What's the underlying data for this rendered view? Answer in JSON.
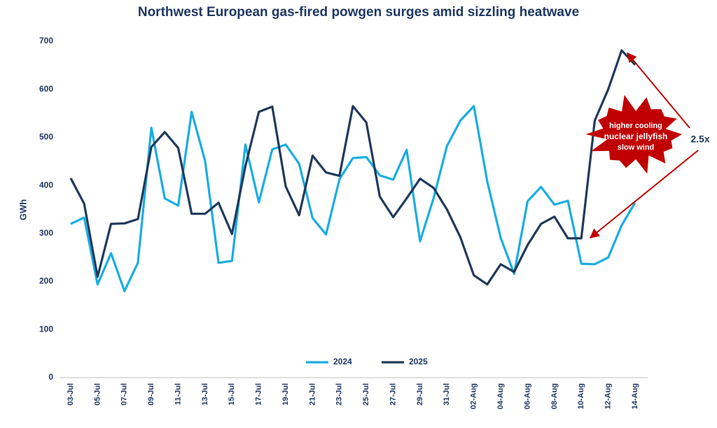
{
  "chart_data": {
    "type": "line",
    "title": "Northwest European gas-fired powgen surges amid sizzling heatwave",
    "y_label": "GWh",
    "categories": [
      "03-Jul",
      null,
      "05-Jul",
      null,
      "07-Jul",
      null,
      "09-Jul",
      null,
      "11-Jul",
      null,
      "13-Jul",
      null,
      "15-Jul",
      null,
      "17-Jul",
      null,
      "19-Jul",
      null,
      "21-Jul",
      null,
      "23-Jul",
      null,
      "25-Jul",
      null,
      "27-Jul",
      null,
      "29-Jul",
      null,
      "31-Jul",
      null,
      "02-Aug",
      null,
      "04-Aug",
      null,
      "06-Aug",
      null,
      "08-Aug",
      null,
      "10-Aug",
      null,
      "12-Aug",
      null,
      "14-Aug"
    ],
    "series": [
      {
        "name": "2024",
        "color": "#1aade3",
        "values": [
          320,
          333,
          194,
          259,
          180,
          239,
          520,
          373,
          358,
          553,
          451,
          239,
          243,
          485,
          365,
          475,
          485,
          445,
          332,
          298,
          413,
          457,
          459,
          421,
          412,
          474,
          284,
          373,
          482,
          535,
          565,
          408,
          291,
          216,
          367,
          397,
          360,
          368,
          237,
          236,
          250,
          317,
          364
        ]
      },
      {
        "name": "2025",
        "color": "#203a5c",
        "values": [
          415,
          362,
          210,
          320,
          321,
          330,
          480,
          511,
          478,
          341,
          341,
          364,
          299,
          440,
          553,
          564,
          398,
          338,
          462,
          427,
          420,
          565,
          531,
          377,
          334,
          373,
          414,
          395,
          350,
          292,
          213,
          194,
          236,
          220,
          276,
          320,
          335,
          290,
          290,
          535,
          600,
          681,
          651
        ]
      }
    ],
    "ylim": [
      0,
      700
    ],
    "yticks": [
      0,
      100,
      200,
      300,
      400,
      500,
      600,
      700
    ],
    "annotations": [
      "higher cooling",
      "nuclear jellyfish",
      "slow wind",
      "2.5x"
    ]
  }
}
